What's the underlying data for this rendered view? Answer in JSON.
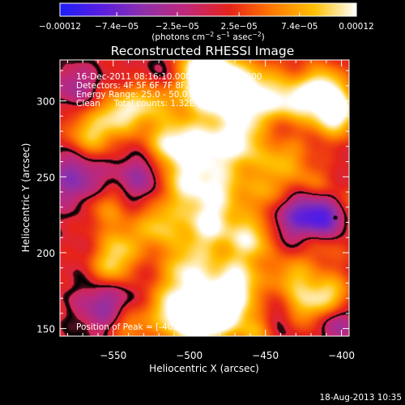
{
  "chart_data": {
    "type": "heatmap",
    "title": "Reconstructed RHESSI Image",
    "xlabel": "Heliocentric X (arcsec)",
    "ylabel": "Heliocentric Y (arcsec)",
    "xlim": [
      -585,
      -395
    ],
    "ylim": [
      145,
      327
    ],
    "x_ticks": [
      -550,
      -500,
      -450,
      -400
    ],
    "x_tick_labels": [
      "−550",
      "−500",
      "−450",
      "−400"
    ],
    "y_ticks": [
      150,
      200,
      250,
      300
    ],
    "y_tick_labels": [
      "150",
      "200",
      "250",
      "300"
    ],
    "colorbar": {
      "range": [
        -0.00012,
        0.00012
      ],
      "ticks": [
        -0.00012,
        -7.4e-05,
        -2.5e-05,
        2.5e-05,
        7.4e-05,
        0.00012
      ],
      "tick_labels": [
        "−0.00012",
        "−7.4e−05",
        "−2.5e−05",
        "2.5e−05",
        "7.4e−05",
        "0.00012"
      ],
      "unit_label": "(photons cm",
      "unit_sup1": "−2",
      "unit_mid": " s",
      "unit_sup2": "−1",
      "unit_end": " asec",
      "unit_sup3": "−2",
      "unit_close": ")",
      "colors": [
        "#1e1ef5",
        "#5a1ee0",
        "#9030a8",
        "#c02878",
        "#e6231a",
        "#ff7800",
        "#ffc000",
        "#ffffff"
      ]
    },
    "annotations": [
      "16-Dec-2011 08:16:10.000 to 08:22:10.000",
      "Detectors: 4F 5F 6F 7F 8F, Att 0",
      "Energy Range: 25.0 - 50.0 keV",
      "Clean     Total counts: 1.32E+04"
    ],
    "peak_label": "Position of Peak = [-402,311]",
    "sources": [
      {
        "x": -492,
        "y": 310,
        "a": 0.9,
        "r": 14
      },
      {
        "x": -455,
        "y": 300,
        "a": 0.9,
        "r": 16
      },
      {
        "x": -475,
        "y": 310,
        "a": 0.8,
        "r": 10
      },
      {
        "x": -405,
        "y": 293,
        "a": 1.0,
        "r": 11
      },
      {
        "x": -413,
        "y": 310,
        "a": 0.7,
        "r": 10
      },
      {
        "x": -470,
        "y": 272,
        "a": 0.7,
        "r": 12
      },
      {
        "x": -495,
        "y": 270,
        "a": 0.7,
        "r": 12
      },
      {
        "x": -515,
        "y": 272,
        "a": 0.65,
        "r": 11
      },
      {
        "x": -565,
        "y": 278,
        "a": 0.65,
        "r": 11
      },
      {
        "x": -545,
        "y": 292,
        "a": 0.7,
        "r": 10
      },
      {
        "x": -440,
        "y": 262,
        "a": 0.55,
        "r": 12
      },
      {
        "x": -505,
        "y": 245,
        "a": 0.65,
        "r": 12
      },
      {
        "x": -480,
        "y": 242,
        "a": 0.65,
        "r": 12
      },
      {
        "x": -448,
        "y": 238,
        "a": 0.5,
        "r": 10
      },
      {
        "x": -520,
        "y": 218,
        "a": 0.6,
        "r": 11
      },
      {
        "x": -488,
        "y": 218,
        "a": 0.75,
        "r": 11
      },
      {
        "x": -460,
        "y": 210,
        "a": 0.75,
        "r": 11
      },
      {
        "x": -412,
        "y": 210,
        "a": 0.45,
        "r": 11
      },
      {
        "x": -545,
        "y": 205,
        "a": 0.5,
        "r": 10
      },
      {
        "x": -552,
        "y": 190,
        "a": 0.55,
        "r": 9
      },
      {
        "x": -500,
        "y": 190,
        "a": 0.7,
        "r": 12
      },
      {
        "x": -470,
        "y": 180,
        "a": 0.85,
        "r": 12
      },
      {
        "x": -432,
        "y": 185,
        "a": 0.5,
        "r": 10
      },
      {
        "x": -508,
        "y": 162,
        "a": 0.85,
        "r": 13
      },
      {
        "x": -490,
        "y": 155,
        "a": 0.85,
        "r": 12
      },
      {
        "x": -475,
        "y": 162,
        "a": 0.6,
        "r": 10
      },
      {
        "x": -425,
        "y": 163,
        "a": 0.55,
        "r": 11
      },
      {
        "x": -408,
        "y": 172,
        "a": 0.65,
        "r": 10
      },
      {
        "x": -455,
        "y": 148,
        "a": 0.5,
        "r": 9
      },
      {
        "x": -490,
        "y": 325,
        "a": 0.6,
        "r": 10
      },
      {
        "x": -540,
        "y": 152,
        "a": 0.45,
        "r": 9
      },
      {
        "x": -400,
        "y": 230,
        "a": 0.35,
        "r": 9
      },
      {
        "x": -420,
        "y": 245,
        "a": 0.4,
        "r": 9
      },
      {
        "x": -525,
        "y": 300,
        "a": 0.55,
        "r": 10
      },
      {
        "x": -555,
        "y": 230,
        "a": 0.4,
        "r": 10
      },
      {
        "x": -430,
        "y": 300,
        "a": 0.5,
        "r": 9
      }
    ],
    "sinks": [
      {
        "x": -430,
        "y": 226,
        "a": 0.6,
        "r": 14
      },
      {
        "x": -410,
        "y": 222,
        "a": 0.9,
        "r": 10
      },
      {
        "x": -575,
        "y": 250,
        "a": 0.5,
        "r": 14
      },
      {
        "x": -530,
        "y": 250,
        "a": 0.45,
        "r": 12
      },
      {
        "x": -445,
        "y": 280,
        "a": 0.35,
        "r": 10
      },
      {
        "x": -555,
        "y": 165,
        "a": 0.45,
        "r": 13
      },
      {
        "x": -440,
        "y": 155,
        "a": 0.3,
        "r": 10
      },
      {
        "x": -575,
        "y": 310,
        "a": 0.35,
        "r": 10
      },
      {
        "x": -515,
        "y": 315,
        "a": 0.3,
        "r": 10
      },
      {
        "x": -405,
        "y": 155,
        "a": 0.45,
        "r": 10
      }
    ]
  },
  "footer": {
    "timestamp": "18-Aug-2013 10:35"
  }
}
